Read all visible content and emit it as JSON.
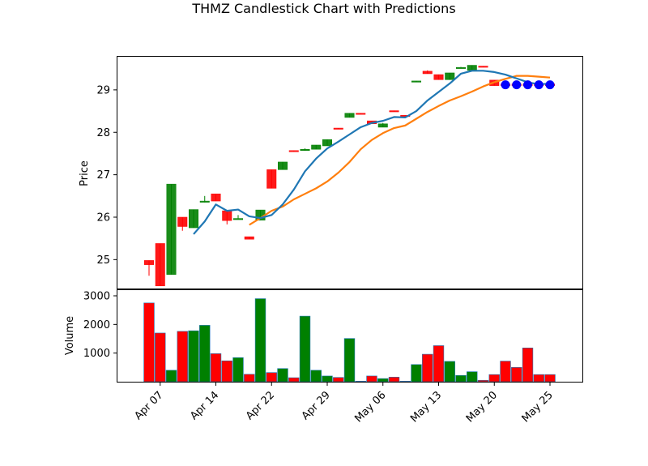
{
  "title": "THMZ Candlestick Chart with Predictions",
  "colors": {
    "up": "#008000",
    "down": "#ff0000",
    "ma_short": "#1f77b4",
    "ma_long": "#ff7f0e",
    "prediction": "#0000ff"
  },
  "chart_data": {
    "type": "candlestick",
    "title": "THMZ Candlestick Chart with Predictions",
    "price_ylabel": "Price",
    "volume_ylabel": "Volume",
    "price_ylim": [
      24.3,
      29.8
    ],
    "volume_ylim": [
      0,
      3000
    ],
    "price_yticks": [
      25,
      26,
      27,
      28,
      29
    ],
    "volume_yticks": [
      1000,
      2000,
      3000
    ],
    "grid": false,
    "xticks": [
      {
        "label": "Apr 07",
        "i": 1
      },
      {
        "label": "Apr 14",
        "i": 6
      },
      {
        "label": "Apr 22",
        "i": 11
      },
      {
        "label": "Apr 29",
        "i": 16
      },
      {
        "label": "May 06",
        "i": 21
      },
      {
        "label": "May 13",
        "i": 26
      },
      {
        "label": "May 20",
        "i": 31
      },
      {
        "label": "May 25",
        "i": 36
      }
    ],
    "candles": [
      {
        "o": 24.98,
        "h": 24.98,
        "l": 24.62,
        "c": 24.88,
        "v": 2750
      },
      {
        "o": 25.38,
        "h": 25.38,
        "l": 24.38,
        "c": 24.38,
        "v": 1700
      },
      {
        "o": 24.65,
        "h": 26.78,
        "l": 24.65,
        "c": 26.78,
        "v": 400
      },
      {
        "o": 26.0,
        "h": 26.0,
        "l": 25.68,
        "c": 25.78,
        "v": 1760
      },
      {
        "o": 25.75,
        "h": 26.18,
        "l": 25.75,
        "c": 26.18,
        "v": 1780
      },
      {
        "o": 26.38,
        "h": 26.5,
        "l": 26.35,
        "c": 26.38,
        "v": 1970
      },
      {
        "o": 26.55,
        "h": 26.55,
        "l": 26.38,
        "c": 26.38,
        "v": 980
      },
      {
        "o": 26.15,
        "h": 26.15,
        "l": 25.83,
        "c": 25.92,
        "v": 730
      },
      {
        "o": 25.97,
        "h": 26.05,
        "l": 25.97,
        "c": 25.97,
        "v": 840
      },
      {
        "o": 25.54,
        "h": 25.54,
        "l": 25.48,
        "c": 25.48,
        "v": 260
      },
      {
        "o": 25.93,
        "h": 26.17,
        "l": 25.93,
        "c": 26.17,
        "v": 2900
      },
      {
        "o": 27.12,
        "h": 27.12,
        "l": 26.68,
        "c": 26.68,
        "v": 320
      },
      {
        "o": 27.12,
        "h": 27.3,
        "l": 27.12,
        "c": 27.3,
        "v": 460
      },
      {
        "o": 27.57,
        "h": 27.57,
        "l": 27.55,
        "c": 27.55,
        "v": 140
      },
      {
        "o": 27.57,
        "h": 27.62,
        "l": 27.57,
        "c": 27.6,
        "v": 2290
      },
      {
        "o": 27.6,
        "h": 27.7,
        "l": 27.6,
        "c": 27.7,
        "v": 400
      },
      {
        "o": 27.68,
        "h": 27.83,
        "l": 27.68,
        "c": 27.83,
        "v": 200
      },
      {
        "o": 28.1,
        "h": 28.1,
        "l": 28.08,
        "c": 28.08,
        "v": 150
      },
      {
        "o": 28.35,
        "h": 28.45,
        "l": 28.35,
        "c": 28.45,
        "v": 1510
      },
      {
        "o": 28.45,
        "h": 28.45,
        "l": 28.43,
        "c": 28.43,
        "v": 20
      },
      {
        "o": 28.27,
        "h": 28.27,
        "l": 28.2,
        "c": 28.2,
        "v": 200
      },
      {
        "o": 28.12,
        "h": 28.22,
        "l": 28.12,
        "c": 28.2,
        "v": 110
      },
      {
        "o": 28.51,
        "h": 28.51,
        "l": 28.49,
        "c": 28.49,
        "v": 160
      },
      {
        "o": 28.4,
        "h": 28.4,
        "l": 28.38,
        "c": 28.38,
        "v": 20
      },
      {
        "o": 29.19,
        "h": 29.21,
        "l": 29.19,
        "c": 29.21,
        "v": 600
      },
      {
        "o": 29.44,
        "h": 29.46,
        "l": 29.38,
        "c": 29.38,
        "v": 960
      },
      {
        "o": 29.36,
        "h": 29.36,
        "l": 29.24,
        "c": 29.24,
        "v": 1260
      },
      {
        "o": 29.24,
        "h": 29.4,
        "l": 29.24,
        "c": 29.4,
        "v": 710
      },
      {
        "o": 29.52,
        "h": 29.54,
        "l": 29.52,
        "c": 29.53,
        "v": 220
      },
      {
        "o": 29.46,
        "h": 29.58,
        "l": 29.46,
        "c": 29.58,
        "v": 350
      },
      {
        "o": 29.56,
        "h": 29.56,
        "l": 29.54,
        "c": 29.54,
        "v": 50
      },
      {
        "o": 29.23,
        "h": 29.23,
        "l": 29.1,
        "c": 29.1,
        "v": 250
      },
      {
        "o": 29.14,
        "h": 29.14,
        "l": 29.1,
        "c": 29.1,
        "v": 720
      },
      {
        "o": 29.14,
        "h": 29.14,
        "l": 29.1,
        "c": 29.1,
        "v": 500
      },
      {
        "o": 29.14,
        "h": 29.14,
        "l": 29.1,
        "c": 29.1,
        "v": 1180
      },
      {
        "o": 29.14,
        "h": 29.14,
        "l": 29.1,
        "c": 29.1,
        "v": 250
      },
      {
        "o": 29.14,
        "h": 29.14,
        "l": 29.1,
        "c": 29.1,
        "v": 250
      }
    ],
    "ma_short": [
      [
        4,
        25.6
      ],
      [
        5,
        25.9
      ],
      [
        6,
        26.3
      ],
      [
        7,
        26.15
      ],
      [
        8,
        26.18
      ],
      [
        9,
        26.02
      ],
      [
        10,
        25.98
      ],
      [
        11,
        26.05
      ],
      [
        12,
        26.3
      ],
      [
        13,
        26.65
      ],
      [
        14,
        27.08
      ],
      [
        15,
        27.38
      ],
      [
        16,
        27.62
      ],
      [
        17,
        27.78
      ],
      [
        18,
        27.95
      ],
      [
        19,
        28.12
      ],
      [
        20,
        28.22
      ],
      [
        21,
        28.27
      ],
      [
        22,
        28.36
      ],
      [
        23,
        28.35
      ],
      [
        24,
        28.5
      ],
      [
        25,
        28.75
      ],
      [
        26,
        28.95
      ],
      [
        27,
        29.15
      ],
      [
        28,
        29.38
      ],
      [
        29,
        29.45
      ],
      [
        30,
        29.45
      ],
      [
        31,
        29.42
      ],
      [
        32,
        29.36
      ],
      [
        33,
        29.27
      ],
      [
        34,
        29.18
      ],
      [
        35,
        29.13
      ],
      [
        36,
        29.15
      ]
    ],
    "ma_long": [
      [
        9,
        25.82
      ],
      [
        10,
        25.98
      ],
      [
        11,
        26.15
      ],
      [
        12,
        26.25
      ],
      [
        13,
        26.42
      ],
      [
        14,
        26.55
      ],
      [
        15,
        26.68
      ],
      [
        16,
        26.84
      ],
      [
        17,
        27.05
      ],
      [
        18,
        27.3
      ],
      [
        19,
        27.6
      ],
      [
        20,
        27.82
      ],
      [
        21,
        27.98
      ],
      [
        22,
        28.1
      ],
      [
        23,
        28.16
      ],
      [
        24,
        28.32
      ],
      [
        25,
        28.48
      ],
      [
        26,
        28.62
      ],
      [
        27,
        28.75
      ],
      [
        28,
        28.85
      ],
      [
        29,
        28.96
      ],
      [
        30,
        29.08
      ],
      [
        31,
        29.18
      ],
      [
        32,
        29.26
      ],
      [
        33,
        29.33
      ],
      [
        34,
        29.33
      ],
      [
        35,
        29.31
      ],
      [
        36,
        29.29
      ]
    ],
    "predictions": [
      [
        32,
        29.12
      ],
      [
        33,
        29.12
      ],
      [
        34,
        29.12
      ],
      [
        35,
        29.12
      ],
      [
        36,
        29.12
      ]
    ]
  }
}
